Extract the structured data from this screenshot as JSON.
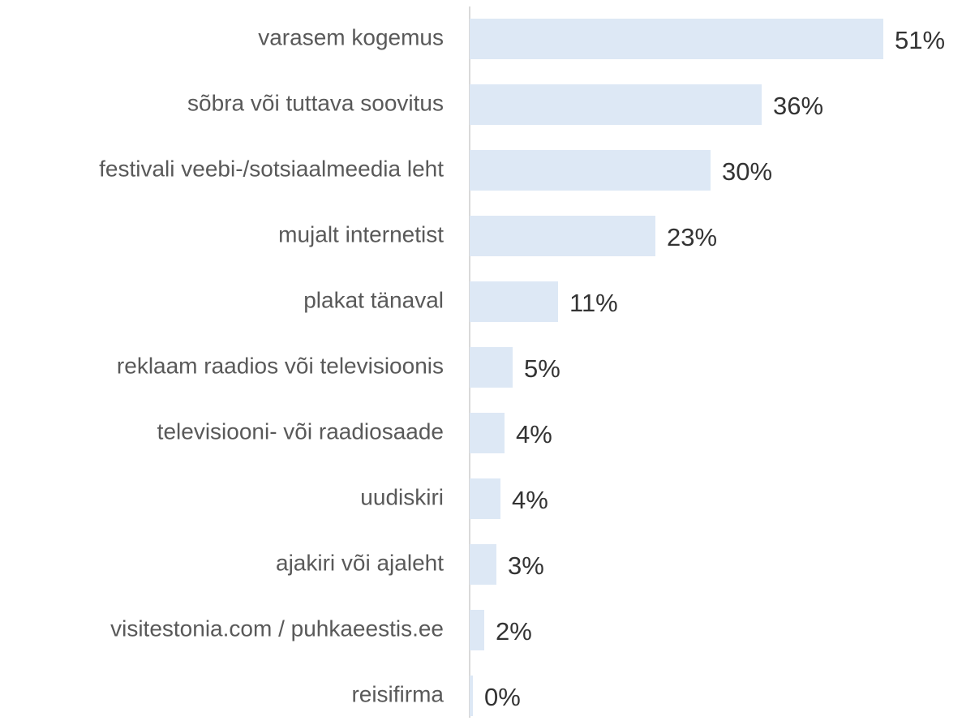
{
  "chart_data": {
    "type": "hbar",
    "categories": [
      "varasem kogemus",
      "sõbra  või tuttava soovitus",
      "festivali veebi-/sotsiaalmeedia leht",
      "mujalt internetist",
      "plakat tänaval",
      "reklaam raadios või televisioonis",
      "televisiooni- või raadiosaade",
      "uudiskiri",
      "ajakiri või ajaleht ",
      "visitestonia.com / puhkaeestis.ee",
      "reisifirma"
    ],
    "values": [
      51,
      36,
      29.7,
      22.9,
      10.9,
      5.3,
      4.3,
      3.8,
      3.3,
      1.8,
      0.4
    ],
    "value_labels": [
      "51%",
      "36%",
      "30%",
      "23%",
      "11%",
      "5%",
      "4%",
      "4%",
      "3%",
      "2%",
      "0%"
    ],
    "color": "#dde8f5",
    "xlim": [
      0,
      60
    ]
  }
}
